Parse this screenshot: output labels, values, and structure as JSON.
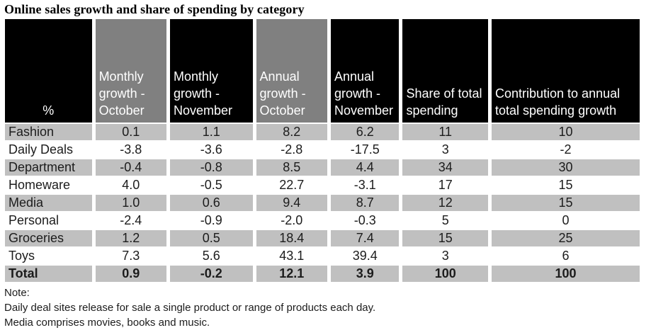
{
  "title": "Online sales growth and share of spending by category",
  "colors": {
    "header_black": "#000000",
    "header_gray": "#808080",
    "row_stripe": "#c0c0c0",
    "header_text": "#ffffff",
    "body_text": "#1c1c1c",
    "page_bg": "#ffffff"
  },
  "table": {
    "columns": [
      {
        "label": "%",
        "bg": "black"
      },
      {
        "label": "Monthly growth - October",
        "bg": "gray"
      },
      {
        "label": "Monthly growth - November",
        "bg": "black"
      },
      {
        "label": "Annual growth - October",
        "bg": "gray"
      },
      {
        "label": "Annual growth - November",
        "bg": "black"
      },
      {
        "label": "Share of total spending",
        "bg": "black"
      },
      {
        "label": "Contribution to annual total spending growth",
        "bg": "black"
      }
    ],
    "rows": [
      {
        "category": "Fashion",
        "cells": [
          "0.1",
          "1.1",
          "8.2",
          "6.2",
          "11",
          "10"
        ]
      },
      {
        "category": "Daily Deals",
        "cells": [
          "-3.8",
          "-3.6",
          "-2.8",
          "-17.5",
          "3",
          "-2"
        ]
      },
      {
        "category": "Department",
        "cells": [
          "-0.4",
          "-0.8",
          "8.5",
          "4.4",
          "34",
          "30"
        ]
      },
      {
        "category": "Homeware",
        "cells": [
          "4.0",
          "-0.5",
          "22.7",
          "-3.1",
          "17",
          "15"
        ]
      },
      {
        "category": "Media",
        "cells": [
          "1.0",
          "0.6",
          "9.4",
          "8.7",
          "12",
          "15"
        ]
      },
      {
        "category": "Personal",
        "cells": [
          "-2.4",
          "-0.9",
          "-2.0",
          "-0.3",
          "5",
          "0"
        ]
      },
      {
        "category": "Groceries",
        "cells": [
          "1.2",
          "0.5",
          "18.4",
          "7.4",
          "15",
          "25"
        ]
      },
      {
        "category": "Toys",
        "cells": [
          "7.3",
          "5.6",
          "43.1",
          "39.4",
          "3",
          "6"
        ]
      },
      {
        "category": "Total",
        "cells": [
          "0.9",
          "-0.2",
          "12.1",
          "3.9",
          "100",
          "100"
        ]
      }
    ]
  },
  "notes": {
    "label": "Note:",
    "lines": [
      "Daily deal sites release for sale a single product or range of products each day.",
      "Media comprises movies, books and music."
    ]
  },
  "chart_data": {
    "type": "table",
    "title": "Online sales growth and share of spending by category",
    "unit": "%",
    "categories": [
      "Fashion",
      "Daily Deals",
      "Department",
      "Homeware",
      "Media",
      "Personal",
      "Groceries",
      "Toys",
      "Total"
    ],
    "series": [
      {
        "name": "Monthly growth - October",
        "values": [
          0.1,
          -3.8,
          -0.4,
          4.0,
          1.0,
          -2.4,
          1.2,
          7.3,
          0.9
        ]
      },
      {
        "name": "Monthly growth - November",
        "values": [
          1.1,
          -3.6,
          -0.8,
          -0.5,
          0.6,
          -0.9,
          0.5,
          5.6,
          -0.2
        ]
      },
      {
        "name": "Annual growth - October",
        "values": [
          8.2,
          -2.8,
          8.5,
          22.7,
          9.4,
          -2.0,
          18.4,
          43.1,
          12.1
        ]
      },
      {
        "name": "Annual growth - November",
        "values": [
          6.2,
          -17.5,
          4.4,
          -3.1,
          8.7,
          -0.3,
          7.4,
          39.4,
          3.9
        ]
      },
      {
        "name": "Share of total spending",
        "values": [
          11,
          3,
          34,
          17,
          12,
          5,
          15,
          3,
          100
        ]
      },
      {
        "name": "Contribution to annual total spending growth",
        "values": [
          10,
          -2,
          30,
          15,
          15,
          0,
          25,
          6,
          100
        ]
      }
    ],
    "notes": [
      "Daily deal sites release for sale a single product or range of products each day.",
      "Media comprises movies, books and music."
    ],
    "layout_hints": {
      "striped_rows": true,
      "header_bg_pattern": [
        "black",
        "gray",
        "black",
        "gray",
        "black",
        "black",
        "black"
      ],
      "total_row_bold": true
    }
  }
}
